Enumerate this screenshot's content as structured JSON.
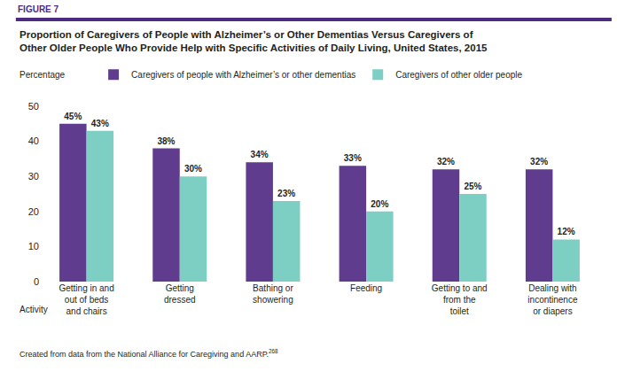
{
  "chart_data": {
    "type": "bar",
    "figure_label": "FIGURE 7",
    "title": "Proportion of Caregivers of People with Alzheimer’s or Other Dementias Versus Caregivers of Other Older People Who Provide Help with Specific Activities of Daily Living, United States, 2015",
    "y_label": "Percentage",
    "x_label": "Activity",
    "note": "Created from data from the National Alliance for Caregiving and AARP.",
    "note_ref": "268",
    "categories": [
      "Getting in and out of beds and chairs",
      "Getting dressed",
      "Bathing or showering",
      "Feeding",
      "Getting to and from the toilet",
      "Dealing with incontinence or diapers"
    ],
    "series": [
      {
        "name": "Caregivers of people with Alzheimer’s or other dementias",
        "color": "#5f3c8e",
        "values": [
          45,
          38,
          34,
          33,
          32,
          32
        ],
        "value_labels": [
          "45%",
          "38%",
          "34%",
          "33%",
          "32%",
          "32%"
        ]
      },
      {
        "name": "Caregivers of other older people",
        "color": "#7ecfc3",
        "values": [
          43,
          30,
          23,
          20,
          25,
          12
        ],
        "value_labels": [
          "43%",
          "30%",
          "23%",
          "20%",
          "25%",
          "12%"
        ]
      }
    ],
    "ylim": [
      0,
      50
    ],
    "yticks": [
      0,
      10,
      20,
      30,
      40,
      50
    ],
    "grid": false,
    "legend": "top",
    "data_labels": true
  }
}
